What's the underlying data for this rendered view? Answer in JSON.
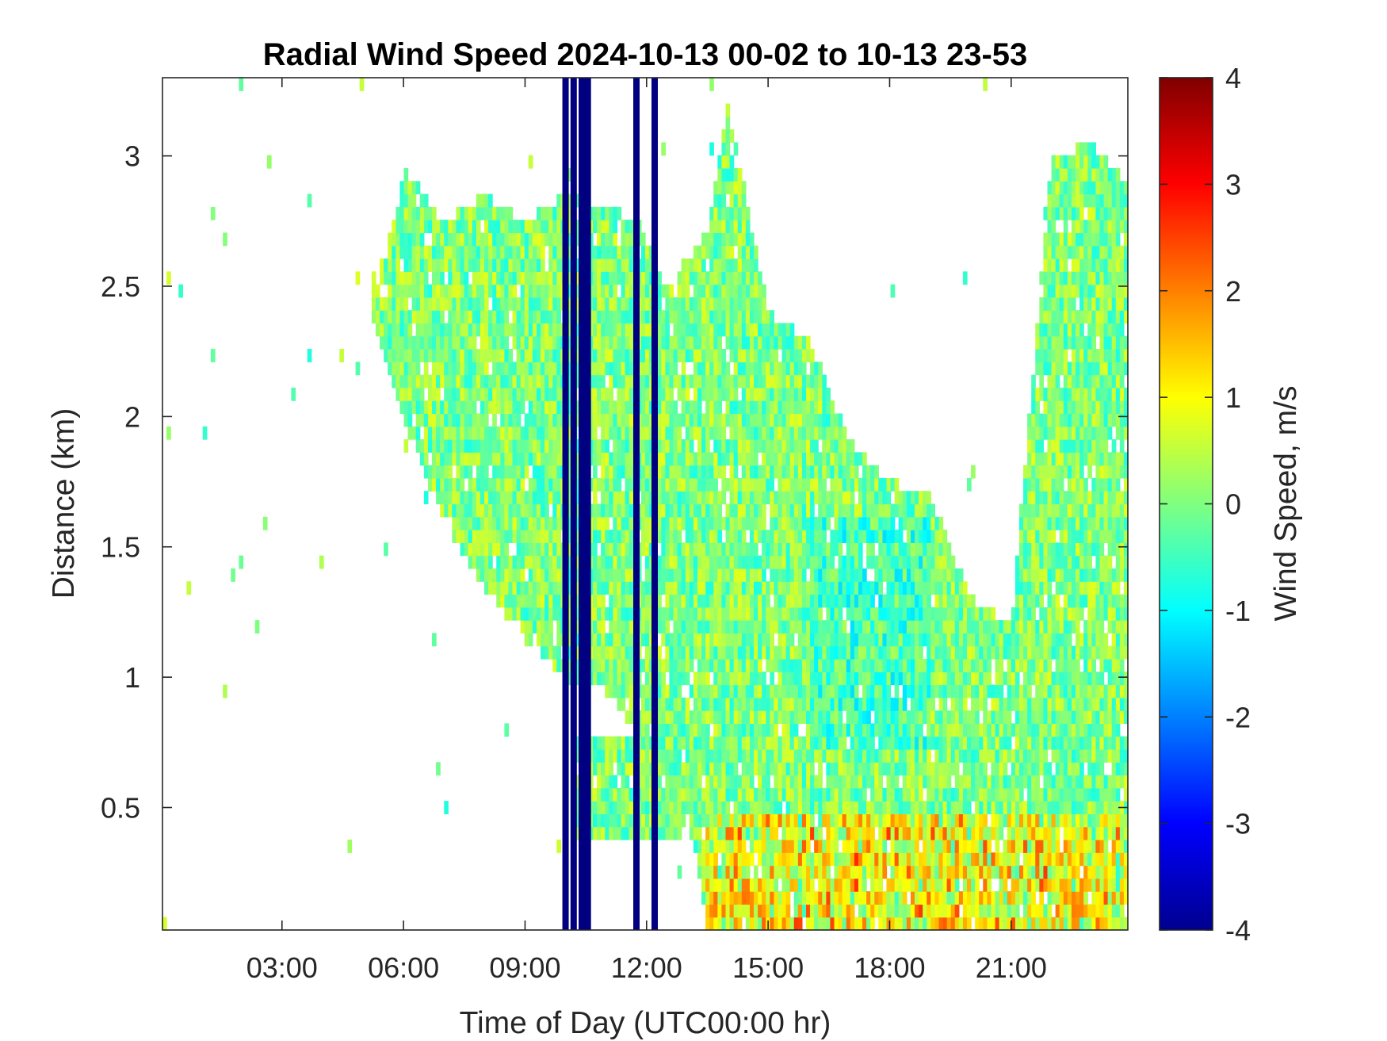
{
  "chart_data": {
    "type": "heatmap",
    "title": "Radial Wind Speed 2024-10-13 00-02 to 10-13 23-53",
    "xlabel": "Time of Day (UTC00:00 hr)",
    "ylabel": "Distance (km)",
    "x_unit": "hour of day",
    "xlim": [
      0.05,
      23.88
    ],
    "ylim": [
      0.03,
      3.3
    ],
    "x_ticks": [
      {
        "value": 3,
        "label": "03:00"
      },
      {
        "value": 6,
        "label": "06:00"
      },
      {
        "value": 9,
        "label": "09:00"
      },
      {
        "value": 12,
        "label": "12:00"
      },
      {
        "value": 15,
        "label": "15:00"
      },
      {
        "value": 18,
        "label": "18:00"
      },
      {
        "value": 21,
        "label": "21:00"
      }
    ],
    "y_ticks": [
      {
        "value": 0.5,
        "label": "0.5"
      },
      {
        "value": 1,
        "label": "1"
      },
      {
        "value": 1.5,
        "label": "1.5"
      },
      {
        "value": 2,
        "label": "2"
      },
      {
        "value": 2.5,
        "label": "2.5"
      },
      {
        "value": 3,
        "label": "3"
      }
    ],
    "colorbar": {
      "label": "Wind Speed, m/s",
      "colormap": "jet",
      "range": [
        -4,
        4
      ],
      "ticks": [
        {
          "value": 4,
          "label": "4"
        },
        {
          "value": 3,
          "label": "3"
        },
        {
          "value": 2,
          "label": "2"
        },
        {
          "value": 1,
          "label": "1"
        },
        {
          "value": 0,
          "label": "0"
        },
        {
          "value": -1,
          "label": "-1"
        },
        {
          "value": -2,
          "label": "-2"
        },
        {
          "value": -3,
          "label": "-3"
        },
        {
          "value": -4,
          "label": "-4"
        }
      ]
    },
    "data_coverage_top_km": [
      [
        5.2,
        2.55
      ],
      [
        5.6,
        2.6
      ],
      [
        6.0,
        2.95
      ],
      [
        6.5,
        2.85
      ],
      [
        7.0,
        2.75
      ],
      [
        8.0,
        2.85
      ],
      [
        9.0,
        2.75
      ],
      [
        10.0,
        2.85
      ],
      [
        11.0,
        2.8
      ],
      [
        11.8,
        2.75
      ],
      [
        12.5,
        2.5
      ],
      [
        13.5,
        2.7
      ],
      [
        14.0,
        3.2
      ],
      [
        15.0,
        2.4
      ],
      [
        16.0,
        2.3
      ],
      [
        17.0,
        1.9
      ],
      [
        18.0,
        1.75
      ],
      [
        19.0,
        1.7
      ],
      [
        19.5,
        1.5
      ],
      [
        20.0,
        1.3
      ],
      [
        21.0,
        1.2
      ],
      [
        22.0,
        3.0
      ],
      [
        23.0,
        3.05
      ],
      [
        23.88,
        2.9
      ]
    ],
    "data_coverage_bottom_km": [
      [
        5.2,
        2.4
      ],
      [
        6.0,
        2.0
      ],
      [
        7.0,
        1.6
      ],
      [
        8.0,
        1.35
      ],
      [
        9.0,
        1.15
      ],
      [
        10.0,
        1.0
      ],
      [
        11.0,
        0.95
      ],
      [
        12.0,
        0.75
      ],
      [
        13.0,
        0.5
      ],
      [
        13.5,
        0.03
      ],
      [
        23.88,
        0.03
      ]
    ],
    "low_level_band": {
      "x_start": 10.3,
      "x_end": 13.0,
      "y_bottom": 0.4,
      "y_top": 0.75
    },
    "missing_columns_hr": [
      10.0,
      10.2,
      10.4,
      10.55,
      11.75,
      12.2
    ],
    "typical_values_ms": {
      "bulk": 0,
      "range_in_data": [
        -1,
        1.5
      ],
      "missing_fill": -4
    }
  }
}
